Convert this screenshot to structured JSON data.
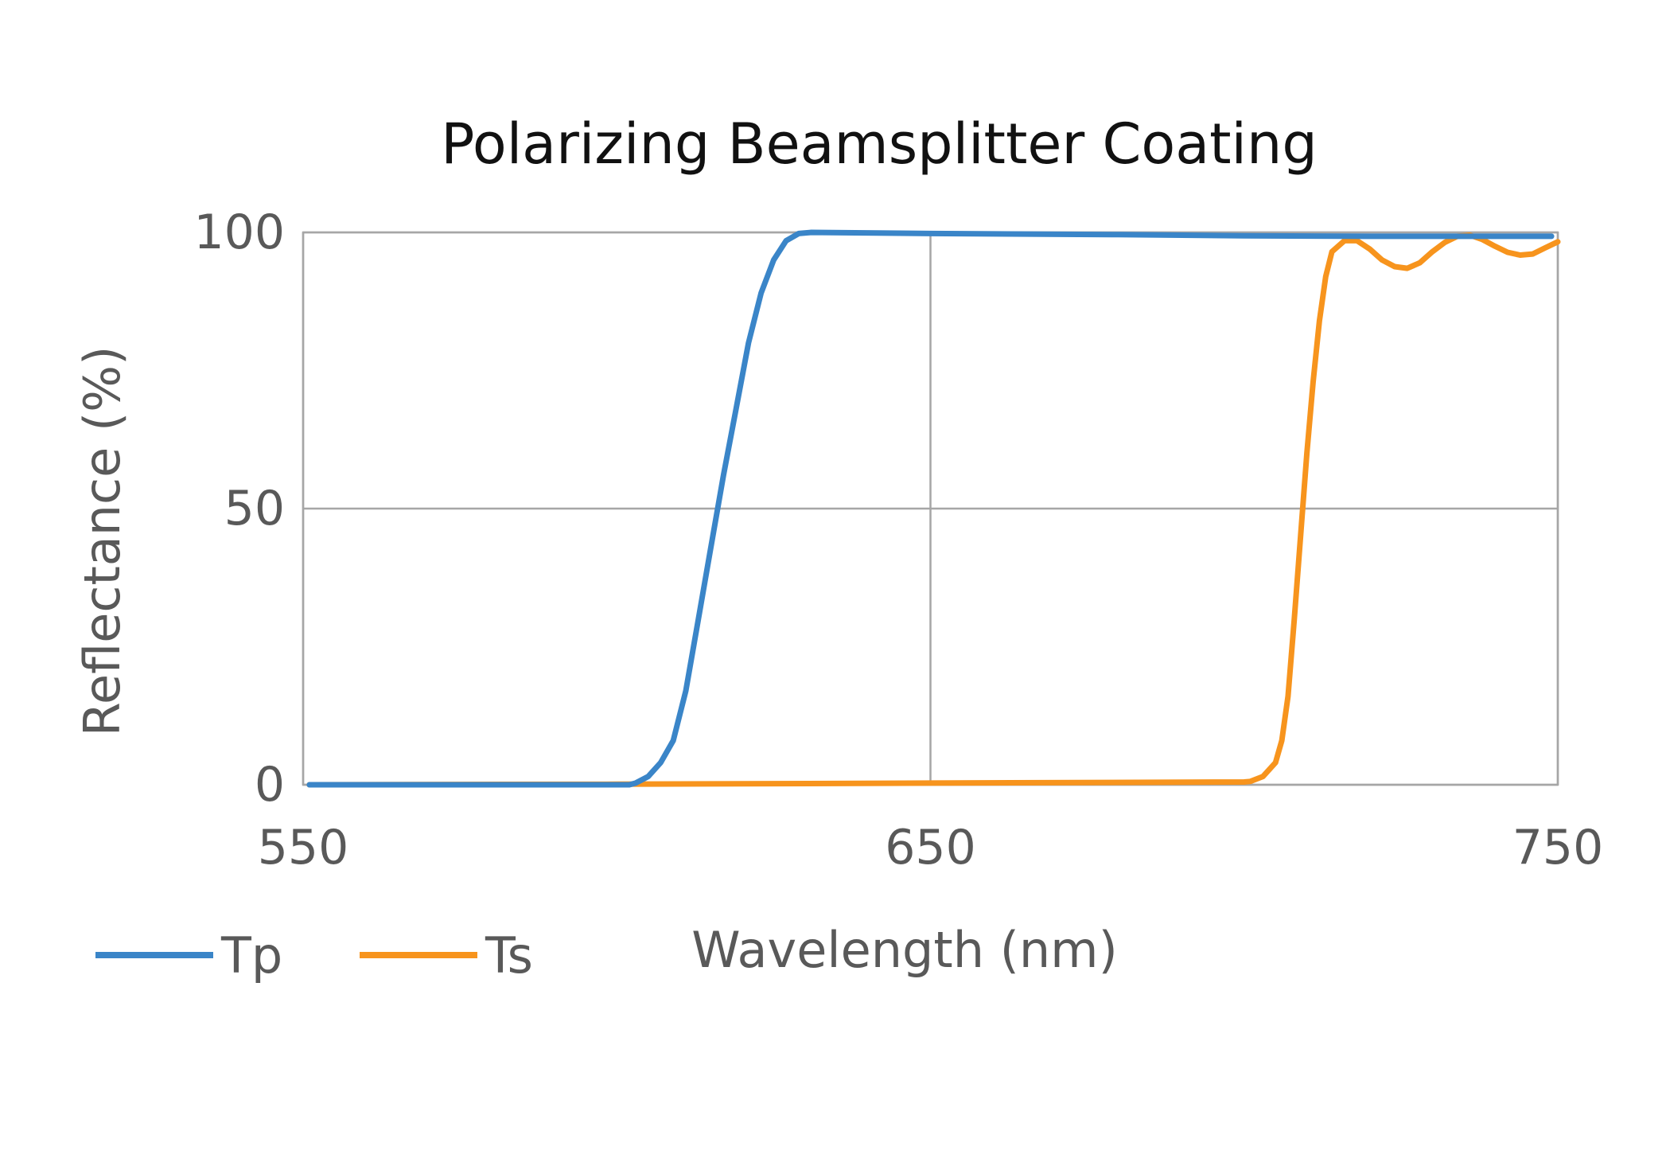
{
  "chart_data": {
    "type": "line",
    "title": "Polarizing Beamsplitter Coating",
    "xlabel": "Wavelength (nm)",
    "ylabel": "Reflectance (%)",
    "xlim": [
      550,
      750
    ],
    "ylim": [
      0,
      100
    ],
    "x_ticks": [
      "550",
      "650",
      "750"
    ],
    "y_ticks": [
      "0",
      "50",
      "100"
    ],
    "grid": true,
    "legend_position": "bottom-left",
    "series": [
      {
        "name": "Tp",
        "color": "#3a85c8",
        "points": [
          [
            551,
            0
          ],
          [
            570,
            0
          ],
          [
            590,
            0
          ],
          [
            602,
            0
          ],
          [
            603,
            0.3
          ],
          [
            605,
            1.5
          ],
          [
            607,
            4
          ],
          [
            609,
            8
          ],
          [
            611,
            17
          ],
          [
            613,
            30
          ],
          [
            615,
            43
          ],
          [
            617,
            56
          ],
          [
            619,
            68
          ],
          [
            621,
            80
          ],
          [
            623,
            89
          ],
          [
            625,
            95
          ],
          [
            627,
            98.5
          ],
          [
            629,
            99.8
          ],
          [
            631,
            100
          ],
          [
            650,
            99.8
          ],
          [
            680,
            99.6
          ],
          [
            700,
            99.4
          ],
          [
            720,
            99.3
          ],
          [
            749,
            99.3
          ]
        ]
      },
      {
        "name": "Ts",
        "color": "#f7941d",
        "points": [
          [
            551,
            0
          ],
          [
            600,
            0.1
          ],
          [
            650,
            0.3
          ],
          [
            700,
            0.5
          ],
          [
            701,
            0.6
          ],
          [
            703,
            1.5
          ],
          [
            705,
            4
          ],
          [
            706,
            8
          ],
          [
            707,
            16
          ],
          [
            708,
            30
          ],
          [
            709,
            45
          ],
          [
            710,
            60
          ],
          [
            711,
            73
          ],
          [
            712,
            84
          ],
          [
            713,
            92
          ],
          [
            714,
            96.5
          ],
          [
            716,
            98.5
          ],
          [
            718,
            98.5
          ],
          [
            720,
            97
          ],
          [
            722,
            95
          ],
          [
            724,
            93.8
          ],
          [
            726,
            93.5
          ],
          [
            728,
            94.5
          ],
          [
            730,
            96.5
          ],
          [
            732,
            98.2
          ],
          [
            734,
            99.3
          ],
          [
            736,
            99.5
          ],
          [
            738,
            98.7
          ],
          [
            740,
            97.5
          ],
          [
            742,
            96.4
          ],
          [
            744,
            95.9
          ],
          [
            746,
            96.1
          ],
          [
            748,
            97.2
          ],
          [
            750,
            98.3
          ]
        ]
      }
    ]
  }
}
